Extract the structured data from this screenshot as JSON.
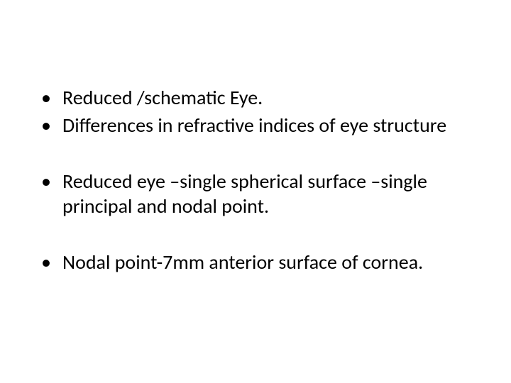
{
  "slide": {
    "bullets": [
      "Reduced /schematic Eye.",
      "Differences in refractive indices of eye structure",
      "Reduced eye –single spherical surface –single principal and nodal point.",
      "Nodal point-7mm anterior surface of cornea."
    ],
    "text_color": "#000000",
    "background_color": "#ffffff",
    "font_size_pt": 28
  }
}
